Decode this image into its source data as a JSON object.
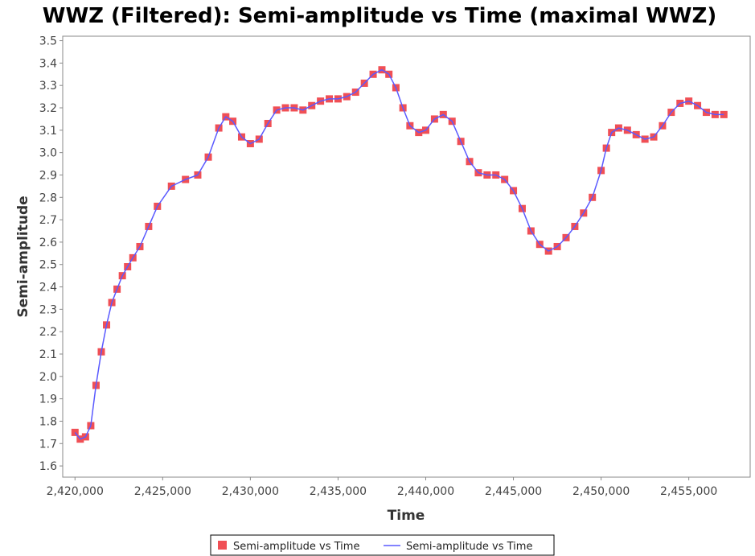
{
  "chart_data": {
    "type": "line",
    "title": "WWZ (Filtered): Semi-amplitude vs Time (maximal WWZ)",
    "xlabel": "Time",
    "ylabel": "Semi-amplitude",
    "xlim": [
      2419300,
      2458500
    ],
    "ylim": [
      1.55,
      3.52
    ],
    "x_ticks": [
      2420000,
      2425000,
      2430000,
      2435000,
      2440000,
      2445000,
      2450000,
      2455000
    ],
    "x_tick_labels": [
      "2,420,000",
      "2,425,000",
      "2,430,000",
      "2,435,000",
      "2,440,000",
      "2,445,000",
      "2,450,000",
      "2,455,000"
    ],
    "y_ticks": [
      1.6,
      1.7,
      1.8,
      1.9,
      2.0,
      2.1,
      2.2,
      2.3,
      2.4,
      2.5,
      2.6,
      2.7,
      2.8,
      2.9,
      3.0,
      3.1,
      3.2,
      3.3,
      3.4,
      3.5
    ],
    "y_tick_labels": [
      "1.6",
      "1.7",
      "1.8",
      "1.9",
      "2.0",
      "2.1",
      "2.2",
      "2.3",
      "2.4",
      "2.5",
      "2.6",
      "2.7",
      "2.8",
      "2.9",
      "3.0",
      "3.1",
      "3.2",
      "3.3",
      "3.4",
      "3.5"
    ],
    "grid": false,
    "legend_position": "bottom",
    "series": [
      {
        "name": "Semi-amplitude vs Time",
        "style": "markers",
        "marker": "square",
        "color": "#f04f55",
        "x": [
          2420000,
          2420300,
          2420600,
          2420900,
          2421200,
          2421500,
          2421800,
          2422100,
          2422400,
          2422700,
          2423000,
          2423300,
          2423700,
          2424200,
          2424700,
          2425500,
          2426300,
          2427000,
          2427600,
          2428200,
          2428600,
          2429000,
          2429500,
          2430000,
          2430500,
          2431000,
          2431500,
          2432000,
          2432500,
          2433000,
          2433500,
          2434000,
          2434500,
          2435000,
          2435500,
          2436000,
          2436500,
          2437000,
          2437500,
          2437900,
          2438300,
          2438700,
          2439100,
          2439600,
          2440000,
          2440500,
          2441000,
          2441500,
          2442000,
          2442500,
          2443000,
          2443500,
          2444000,
          2444500,
          2445000,
          2445500,
          2446000,
          2446500,
          2447000,
          2447500,
          2448000,
          2448500,
          2449000,
          2449500,
          2450000,
          2450300,
          2450600,
          2451000,
          2451500,
          2452000,
          2452500,
          2453000,
          2453500,
          2454000,
          2454500,
          2455000,
          2455500,
          2456000,
          2456500,
          2457000
        ],
        "y": [
          1.75,
          1.72,
          1.73,
          1.78,
          1.96,
          2.11,
          2.23,
          2.33,
          2.39,
          2.45,
          2.49,
          2.53,
          2.58,
          2.67,
          2.76,
          2.85,
          2.88,
          2.9,
          2.98,
          3.11,
          3.16,
          3.14,
          3.07,
          3.04,
          3.06,
          3.13,
          3.19,
          3.2,
          3.2,
          3.19,
          3.21,
          3.23,
          3.24,
          3.24,
          3.25,
          3.27,
          3.31,
          3.35,
          3.37,
          3.35,
          3.29,
          3.2,
          3.12,
          3.09,
          3.1,
          3.15,
          3.17,
          3.14,
          3.05,
          2.96,
          2.91,
          2.9,
          2.9,
          2.88,
          2.83,
          2.75,
          2.65,
          2.59,
          2.56,
          2.58,
          2.62,
          2.67,
          2.73,
          2.8,
          2.92,
          3.02,
          3.09,
          3.11,
          3.1,
          3.08,
          3.06,
          3.07,
          3.12,
          3.18,
          3.22,
          3.23,
          3.21,
          3.18,
          3.17,
          3.17
        ]
      },
      {
        "name": "Semi-amplitude vs Time",
        "style": "line",
        "color": "#5a5aff",
        "x": [
          2420000,
          2420300,
          2420600,
          2420900,
          2421200,
          2421500,
          2421800,
          2422100,
          2422400,
          2422700,
          2423000,
          2423300,
          2423700,
          2424200,
          2424700,
          2425500,
          2426300,
          2427000,
          2427600,
          2428200,
          2428600,
          2429000,
          2429500,
          2430000,
          2430500,
          2431000,
          2431500,
          2432000,
          2432500,
          2433000,
          2433500,
          2434000,
          2434500,
          2435000,
          2435500,
          2436000,
          2436500,
          2437000,
          2437500,
          2437900,
          2438300,
          2438700,
          2439100,
          2439600,
          2440000,
          2440500,
          2441000,
          2441500,
          2442000,
          2442500,
          2443000,
          2443500,
          2444000,
          2444500,
          2445000,
          2445500,
          2446000,
          2446500,
          2447000,
          2447500,
          2448000,
          2448500,
          2449000,
          2449500,
          2450000,
          2450300,
          2450600,
          2451000,
          2451500,
          2452000,
          2452500,
          2453000,
          2453500,
          2454000,
          2454500,
          2455000,
          2455500,
          2456000,
          2456500,
          2457000
        ],
        "y": [
          1.75,
          1.72,
          1.73,
          1.78,
          1.96,
          2.11,
          2.23,
          2.33,
          2.39,
          2.45,
          2.49,
          2.53,
          2.58,
          2.67,
          2.76,
          2.85,
          2.88,
          2.9,
          2.98,
          3.11,
          3.16,
          3.14,
          3.07,
          3.04,
          3.06,
          3.13,
          3.19,
          3.2,
          3.2,
          3.19,
          3.21,
          3.23,
          3.24,
          3.24,
          3.25,
          3.27,
          3.31,
          3.35,
          3.37,
          3.35,
          3.29,
          3.2,
          3.12,
          3.09,
          3.1,
          3.15,
          3.17,
          3.14,
          3.05,
          2.96,
          2.91,
          2.9,
          2.9,
          2.88,
          2.83,
          2.75,
          2.65,
          2.59,
          2.56,
          2.58,
          2.62,
          2.67,
          2.73,
          2.8,
          2.92,
          3.02,
          3.09,
          3.11,
          3.1,
          3.08,
          3.06,
          3.07,
          3.12,
          3.18,
          3.22,
          3.23,
          3.21,
          3.18,
          3.17,
          3.17
        ]
      }
    ]
  }
}
